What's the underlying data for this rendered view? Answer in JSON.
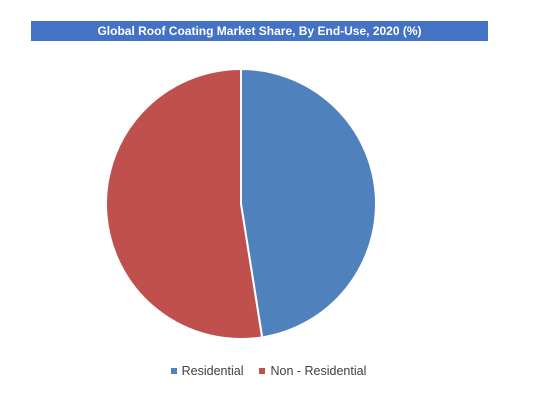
{
  "chart_data": {
    "type": "pie",
    "title": "Global Roof Coating Market Share, By End-Use, 2020 (%)",
    "categories": [
      "Residential",
      "Non - Residential"
    ],
    "values": [
      47.5,
      52.5
    ],
    "colors": [
      "#4f81bd",
      "#c0504d"
    ],
    "legend_position": "bottom",
    "start_angle": "12 o'clock",
    "direction": "clockwise"
  }
}
